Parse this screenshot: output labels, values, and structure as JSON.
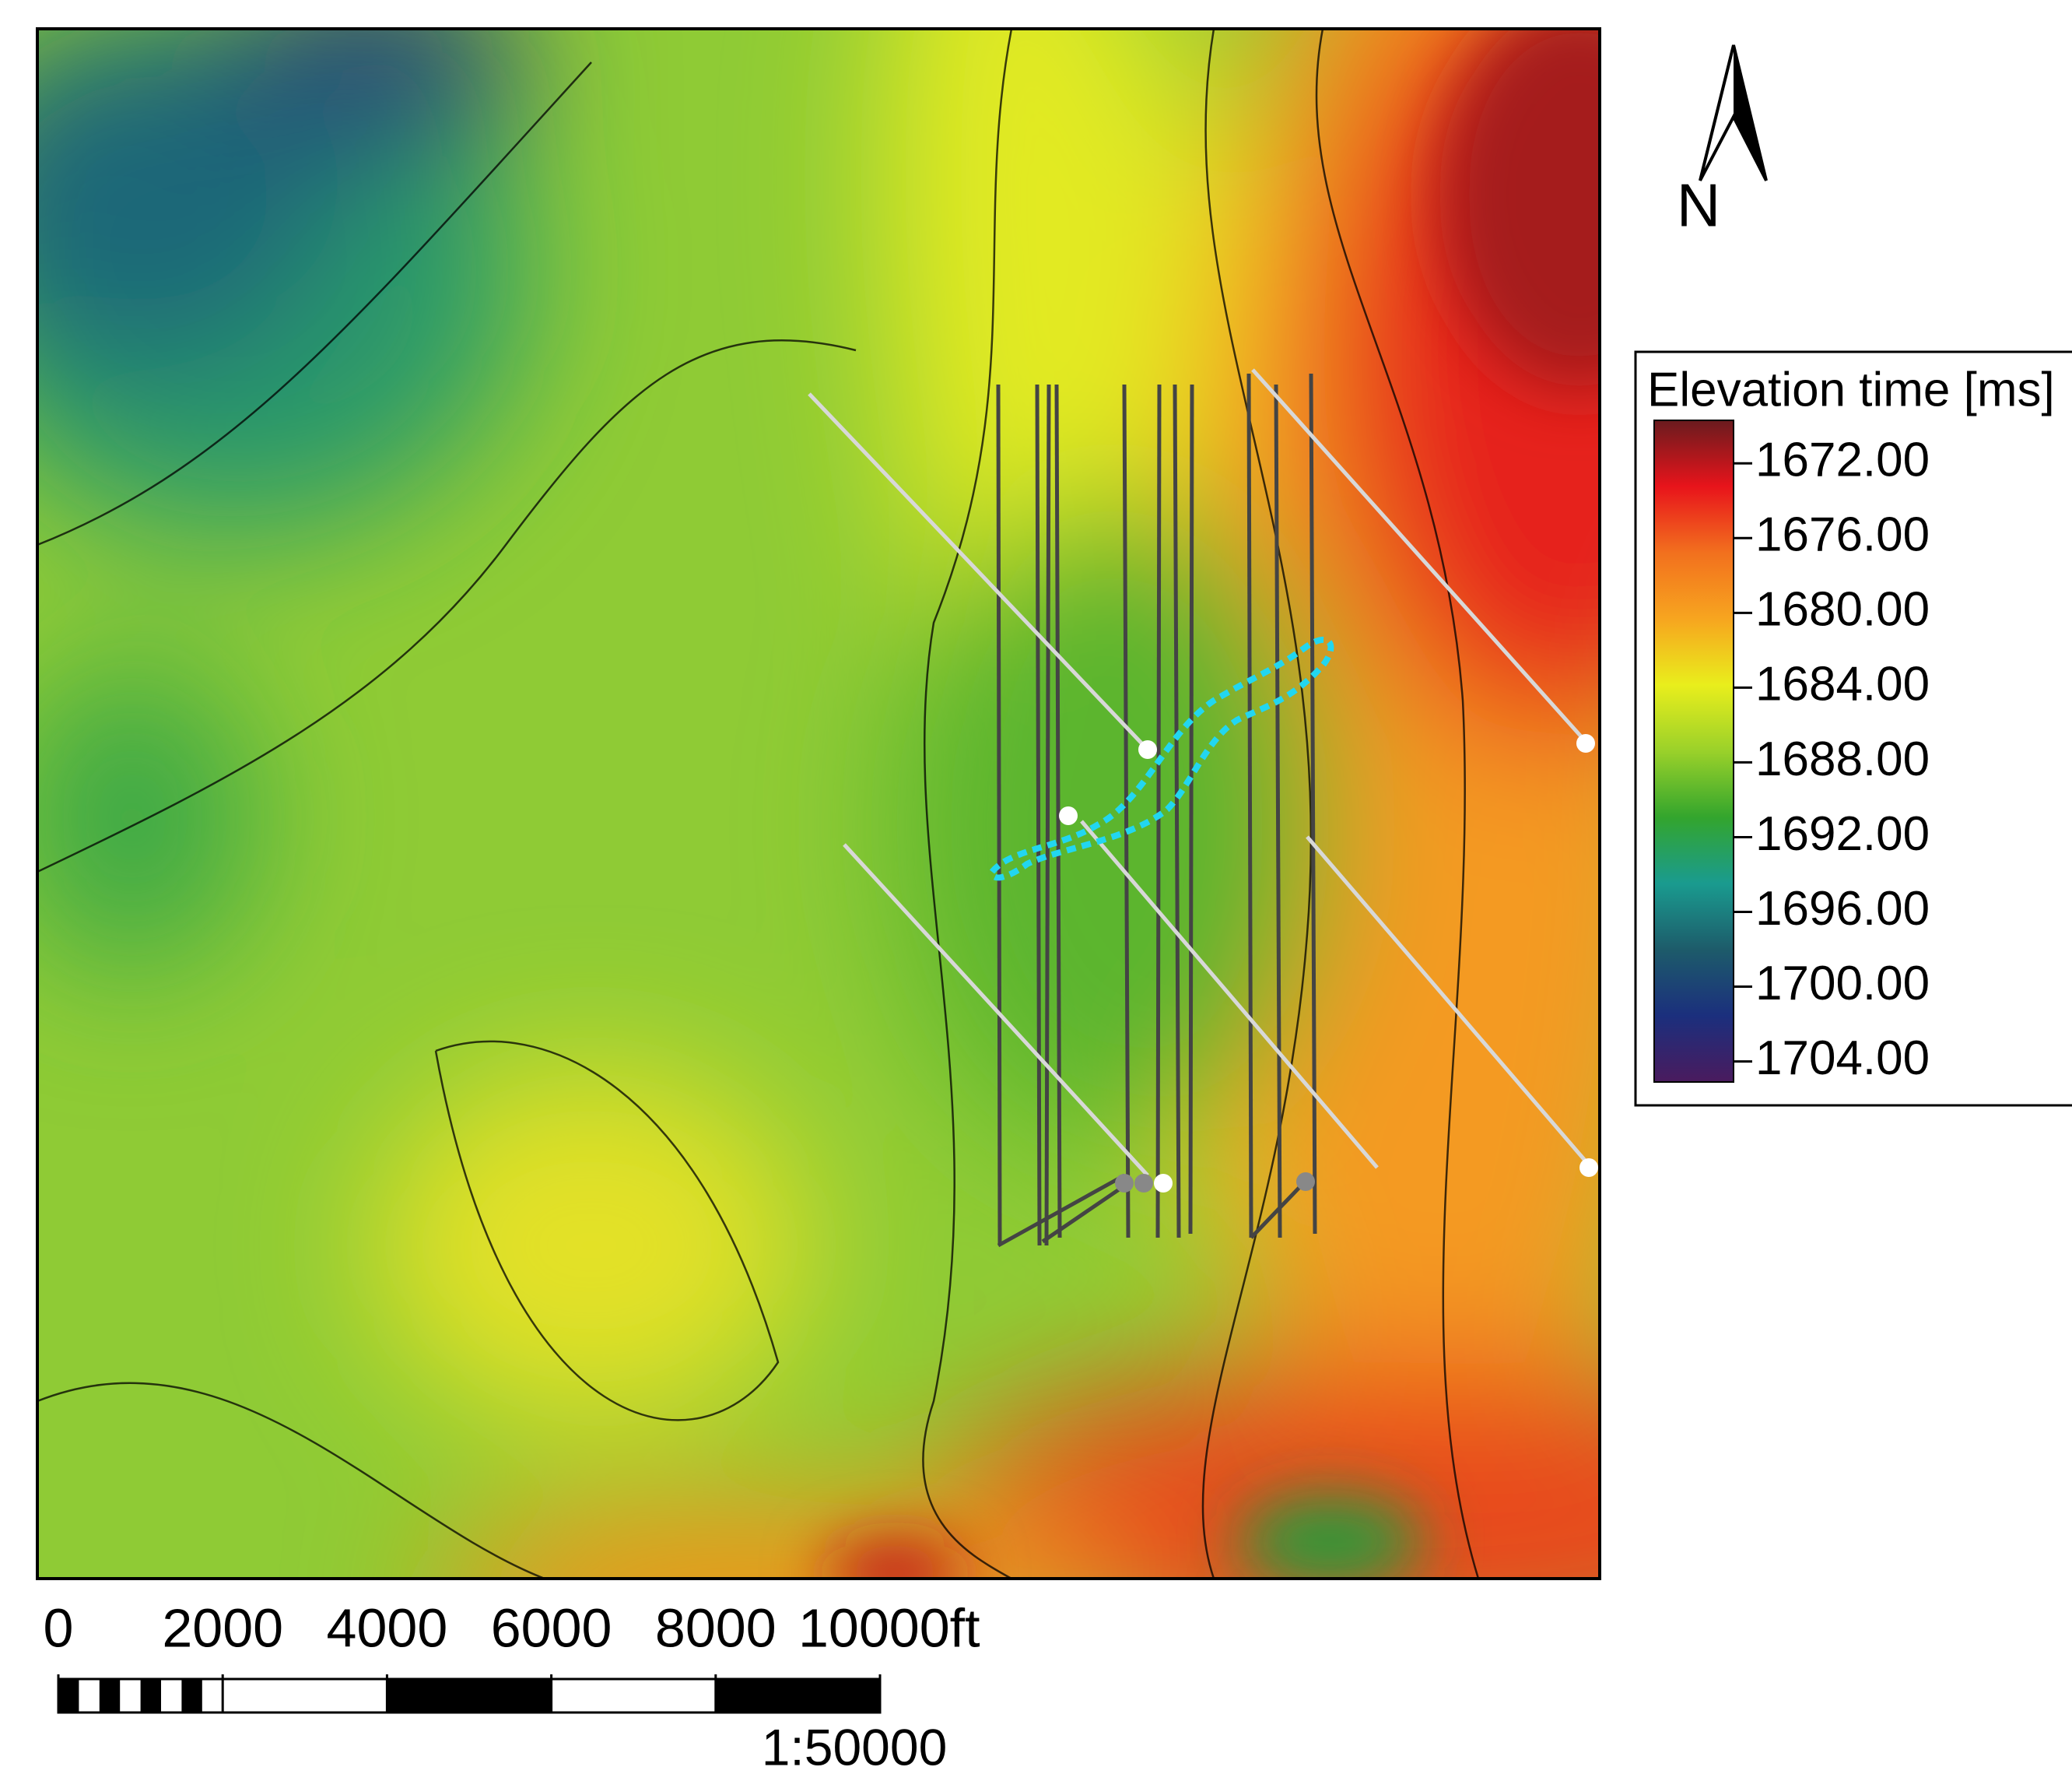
{
  "north_label": "N",
  "legend": {
    "title": "Elevation time [ms]",
    "clim": [
      1669.7,
      1705.1
    ],
    "colors": [
      "#6a1b1e",
      "#e8141b",
      "#f2701e",
      "#f7a51f",
      "#e9ee1c",
      "#9ad12a",
      "#33a52d",
      "#1a9b8f",
      "#1d5b6a",
      "#1b2f7d",
      "#4a1b5e"
    ],
    "ticks": [
      {
        "value": 1672,
        "label": "1672.00"
      },
      {
        "value": 1676,
        "label": "1676.00"
      },
      {
        "value": 1680,
        "label": "1680.00"
      },
      {
        "value": 1684,
        "label": "1684.00"
      },
      {
        "value": 1688,
        "label": "1688.00"
      },
      {
        "value": 1692,
        "label": "1692.00"
      },
      {
        "value": 1696,
        "label": "1696.00"
      },
      {
        "value": 1700,
        "label": "1700.00"
      },
      {
        "value": 1704,
        "label": "1704.00"
      }
    ]
  },
  "scale_bar": {
    "lim": [
      0,
      10000
    ],
    "ticks": [
      0,
      2000,
      4000,
      6000,
      8000,
      {
        "value": 10000,
        "label": "10000ft"
      }
    ],
    "ratio": "1:50000"
  }
}
